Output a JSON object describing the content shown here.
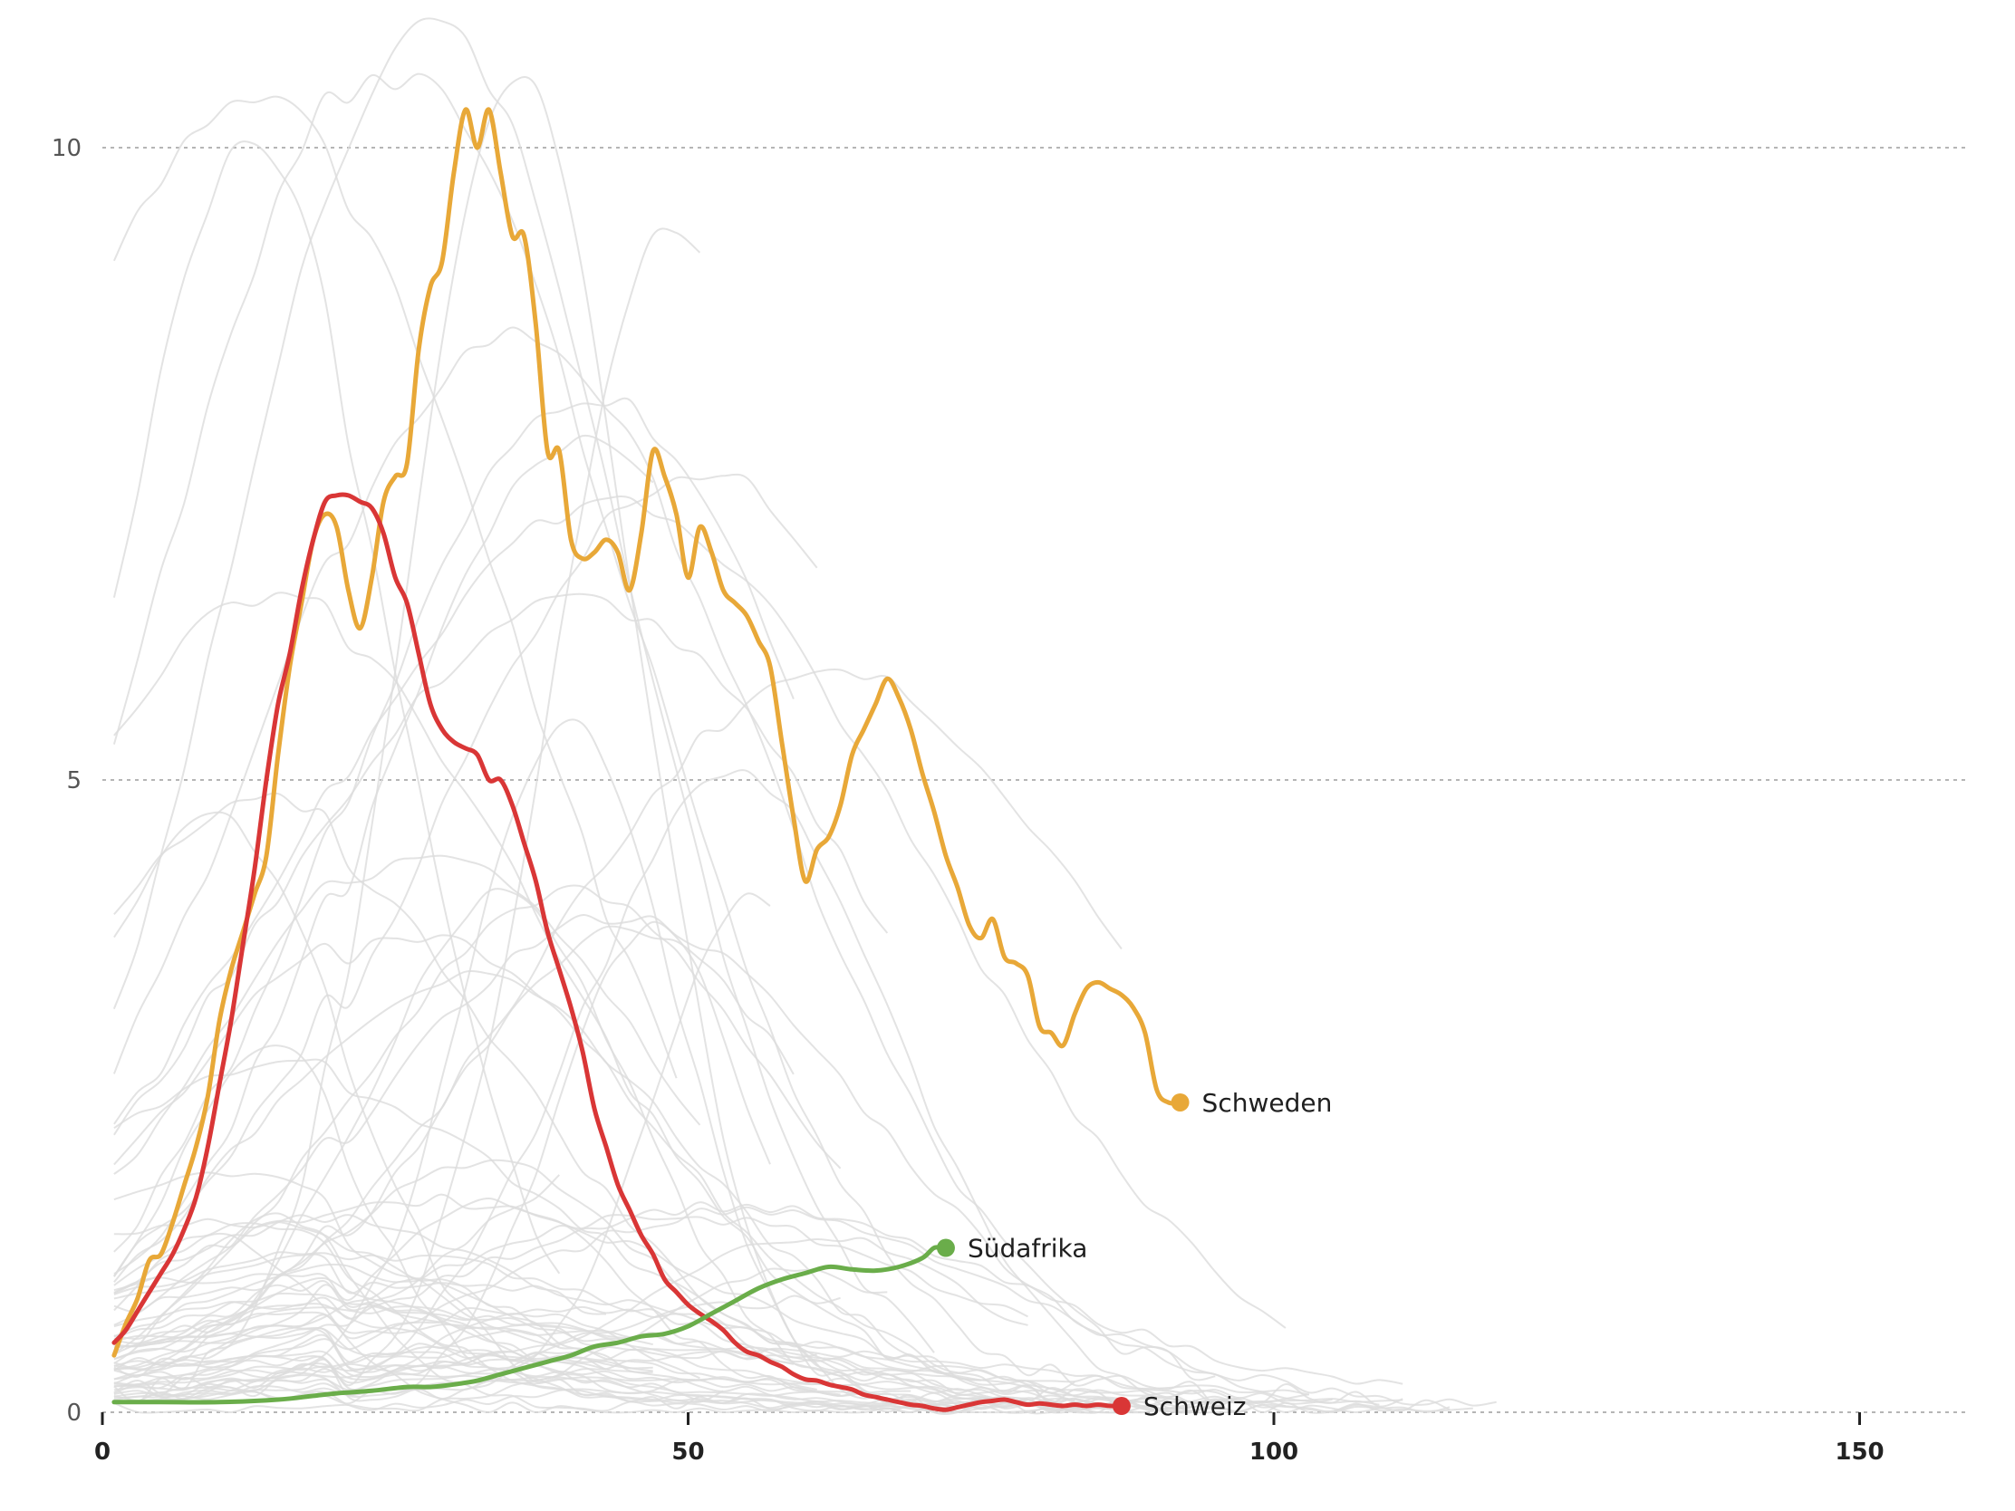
{
  "chart_data": {
    "type": "line",
    "xlim": [
      0,
      160
    ],
    "ylim": [
      0,
      10.5
    ],
    "x_ticks": [
      {
        "value": 0,
        "label": "0"
      },
      {
        "value": 50,
        "label": "50"
      },
      {
        "value": 100,
        "label": "100"
      },
      {
        "value": 150,
        "label": "150"
      }
    ],
    "y_ticks": [
      {
        "value": 0,
        "label": "0"
      },
      {
        "value": 5,
        "label": "5"
      },
      {
        "value": 10,
        "label": "10"
      }
    ],
    "grid": "horizontal dashed",
    "series": [
      {
        "name": "Schweden",
        "color": "#E8A838",
        "points": [
          [
            1,
            0.45
          ],
          [
            2,
            0.7
          ],
          [
            3,
            0.9
          ],
          [
            4,
            1.2
          ],
          [
            5,
            1.25
          ],
          [
            6,
            1.5
          ],
          [
            7,
            1.8
          ],
          [
            8,
            2.1
          ],
          [
            9,
            2.5
          ],
          [
            10,
            3.1
          ],
          [
            11,
            3.5
          ],
          [
            12,
            3.8
          ],
          [
            13,
            4.1
          ],
          [
            14,
            4.4
          ],
          [
            15,
            5.2
          ],
          [
            16,
            5.9
          ],
          [
            17,
            6.4
          ],
          [
            18,
            6.9
          ],
          [
            19,
            7.1
          ],
          [
            20,
            7.0
          ],
          [
            21,
            6.5
          ],
          [
            22,
            6.2
          ],
          [
            23,
            6.6
          ],
          [
            24,
            7.2
          ],
          [
            25,
            7.4
          ],
          [
            26,
            7.5
          ],
          [
            27,
            8.4
          ],
          [
            28,
            8.9
          ],
          [
            29,
            9.1
          ],
          [
            30,
            9.8
          ],
          [
            31,
            10.3
          ],
          [
            32,
            10.0
          ],
          [
            33,
            10.3
          ],
          [
            34,
            9.8
          ],
          [
            35,
            9.3
          ],
          [
            36,
            9.3
          ],
          [
            37,
            8.6
          ],
          [
            38,
            7.6
          ],
          [
            39,
            7.6
          ],
          [
            40,
            6.9
          ],
          [
            41,
            6.75
          ],
          [
            42,
            6.8
          ],
          [
            43,
            6.9
          ],
          [
            44,
            6.8
          ],
          [
            45,
            6.5
          ],
          [
            46,
            6.95
          ],
          [
            47,
            7.6
          ],
          [
            48,
            7.4
          ],
          [
            49,
            7.1
          ],
          [
            50,
            6.6
          ],
          [
            51,
            7.0
          ],
          [
            52,
            6.8
          ],
          [
            53,
            6.5
          ],
          [
            54,
            6.4
          ],
          [
            55,
            6.3
          ],
          [
            56,
            6.1
          ],
          [
            57,
            5.9
          ],
          [
            58,
            5.3
          ],
          [
            59,
            4.7
          ],
          [
            60,
            4.2
          ],
          [
            61,
            4.45
          ],
          [
            62,
            4.55
          ],
          [
            63,
            4.8
          ],
          [
            64,
            5.2
          ],
          [
            65,
            5.4
          ],
          [
            66,
            5.6
          ],
          [
            67,
            5.8
          ],
          [
            68,
            5.65
          ],
          [
            69,
            5.4
          ],
          [
            70,
            5.05
          ],
          [
            71,
            4.75
          ],
          [
            72,
            4.4
          ],
          [
            73,
            4.15
          ],
          [
            74,
            3.85
          ],
          [
            75,
            3.75
          ],
          [
            76,
            3.9
          ],
          [
            77,
            3.6
          ],
          [
            78,
            3.55
          ],
          [
            79,
            3.45
          ],
          [
            80,
            3.05
          ],
          [
            81,
            3.0
          ],
          [
            82,
            2.9
          ],
          [
            83,
            3.15
          ],
          [
            84,
            3.35
          ],
          [
            85,
            3.4
          ],
          [
            86,
            3.35
          ],
          [
            87,
            3.3
          ],
          [
            88,
            3.2
          ],
          [
            89,
            3.0
          ],
          [
            90,
            2.55
          ],
          [
            91,
            2.45
          ],
          [
            92,
            2.45
          ]
        ],
        "label": "Schweden"
      },
      {
        "name": "Schweiz",
        "color": "#D93636",
        "points": [
          [
            1,
            0.55
          ],
          [
            2,
            0.65
          ],
          [
            3,
            0.8
          ],
          [
            4,
            0.95
          ],
          [
            5,
            1.1
          ],
          [
            6,
            1.25
          ],
          [
            7,
            1.45
          ],
          [
            8,
            1.7
          ],
          [
            9,
            2.1
          ],
          [
            10,
            2.6
          ],
          [
            11,
            3.1
          ],
          [
            12,
            3.7
          ],
          [
            13,
            4.3
          ],
          [
            14,
            5.0
          ],
          [
            15,
            5.6
          ],
          [
            16,
            6.0
          ],
          [
            17,
            6.5
          ],
          [
            18,
            6.9
          ],
          [
            19,
            7.2
          ],
          [
            20,
            7.25
          ],
          [
            21,
            7.25
          ],
          [
            22,
            7.2
          ],
          [
            23,
            7.15
          ],
          [
            24,
            6.95
          ],
          [
            25,
            6.6
          ],
          [
            26,
            6.4
          ],
          [
            27,
            6.0
          ],
          [
            28,
            5.6
          ],
          [
            29,
            5.4
          ],
          [
            30,
            5.3
          ],
          [
            31,
            5.25
          ],
          [
            32,
            5.2
          ],
          [
            33,
            5.0
          ],
          [
            34,
            5.0
          ],
          [
            35,
            4.8
          ],
          [
            36,
            4.5
          ],
          [
            37,
            4.2
          ],
          [
            38,
            3.8
          ],
          [
            39,
            3.5
          ],
          [
            40,
            3.2
          ],
          [
            41,
            2.85
          ],
          [
            42,
            2.4
          ],
          [
            43,
            2.1
          ],
          [
            44,
            1.8
          ],
          [
            45,
            1.6
          ],
          [
            46,
            1.4
          ],
          [
            47,
            1.25
          ],
          [
            48,
            1.05
          ],
          [
            49,
            0.95
          ],
          [
            50,
            0.85
          ],
          [
            51,
            0.78
          ],
          [
            52,
            0.72
          ],
          [
            53,
            0.65
          ],
          [
            54,
            0.55
          ],
          [
            55,
            0.48
          ],
          [
            56,
            0.45
          ],
          [
            57,
            0.4
          ],
          [
            58,
            0.36
          ],
          [
            59,
            0.3
          ],
          [
            60,
            0.26
          ],
          [
            61,
            0.25
          ],
          [
            62,
            0.22
          ],
          [
            63,
            0.2
          ],
          [
            64,
            0.18
          ],
          [
            65,
            0.14
          ],
          [
            66,
            0.12
          ],
          [
            67,
            0.1
          ],
          [
            68,
            0.08
          ],
          [
            69,
            0.06
          ],
          [
            70,
            0.05
          ],
          [
            71,
            0.03
          ],
          [
            72,
            0.02
          ],
          [
            73,
            0.04
          ],
          [
            74,
            0.06
          ],
          [
            75,
            0.08
          ],
          [
            76,
            0.09
          ],
          [
            77,
            0.1
          ],
          [
            78,
            0.08
          ],
          [
            79,
            0.06
          ],
          [
            80,
            0.07
          ],
          [
            81,
            0.06
          ],
          [
            82,
            0.05
          ],
          [
            83,
            0.06
          ],
          [
            84,
            0.05
          ],
          [
            85,
            0.06
          ],
          [
            86,
            0.05
          ],
          [
            87,
            0.05
          ]
        ],
        "label": "Schweiz"
      },
      {
        "name": "Südafrika",
        "color": "#6AAD4A",
        "points": [
          [
            1,
            0.08
          ],
          [
            5,
            0.08
          ],
          [
            10,
            0.08
          ],
          [
            15,
            0.1
          ],
          [
            18,
            0.13
          ],
          [
            20,
            0.15
          ],
          [
            23,
            0.17
          ],
          [
            26,
            0.2
          ],
          [
            28,
            0.2
          ],
          [
            30,
            0.22
          ],
          [
            32,
            0.25
          ],
          [
            34,
            0.3
          ],
          [
            36,
            0.35
          ],
          [
            38,
            0.4
          ],
          [
            40,
            0.45
          ],
          [
            42,
            0.52
          ],
          [
            44,
            0.55
          ],
          [
            46,
            0.6
          ],
          [
            48,
            0.62
          ],
          [
            50,
            0.68
          ],
          [
            52,
            0.78
          ],
          [
            54,
            0.88
          ],
          [
            56,
            0.98
          ],
          [
            58,
            1.05
          ],
          [
            60,
            1.1
          ],
          [
            62,
            1.15
          ],
          [
            64,
            1.13
          ],
          [
            66,
            1.12
          ],
          [
            68,
            1.15
          ],
          [
            70,
            1.22
          ],
          [
            71,
            1.3
          ],
          [
            72,
            1.3
          ]
        ],
        "label": "Südafrika"
      }
    ]
  }
}
